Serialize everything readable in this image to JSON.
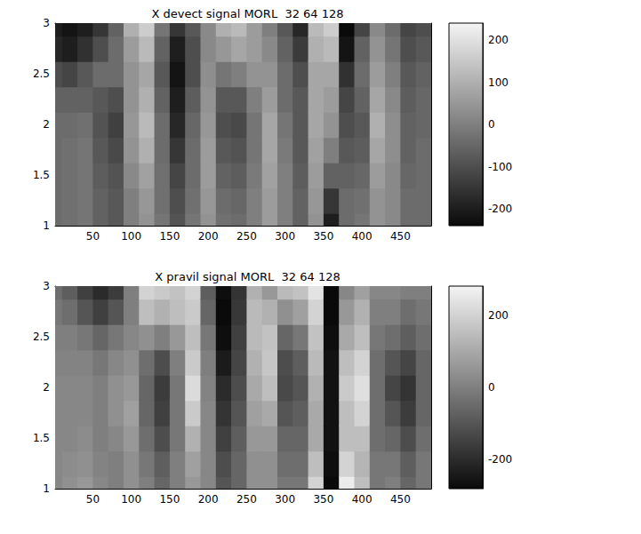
{
  "chart_data": [
    {
      "type": "heatmap",
      "title": "X devect signal MORL  32 64 128",
      "x": [
        0,
        20,
        40,
        60,
        80,
        100,
        120,
        140,
        160,
        180,
        200,
        220,
        240,
        260,
        280,
        300,
        320,
        340,
        360,
        380,
        400,
        420,
        440,
        460,
        480
      ],
      "y": [
        1,
        1.25,
        1.5,
        1.75,
        2,
        2.25,
        2.5,
        2.75,
        3
      ],
      "z": [
        [
          -40,
          -40,
          -40,
          -40,
          -40,
          -60,
          -100,
          -180,
          -200
        ],
        [
          -30,
          -30,
          -30,
          -30,
          -40,
          -60,
          -120,
          -200,
          -220
        ],
        [
          -20,
          -20,
          -20,
          -20,
          -30,
          -60,
          -80,
          -160,
          -200
        ],
        [
          -60,
          -60,
          -70,
          -80,
          -90,
          -80,
          -40,
          -100,
          -150
        ],
        [
          -80,
          -80,
          -90,
          -110,
          -130,
          -100,
          -40,
          -40,
          -60
        ],
        [
          0,
          0,
          20,
          40,
          50,
          40,
          40,
          60,
          100
        ],
        [
          40,
          50,
          70,
          100,
          120,
          100,
          80,
          120,
          160
        ],
        [
          -20,
          -30,
          -30,
          -40,
          -40,
          -60,
          -80,
          -60,
          -20
        ],
        [
          -90,
          -100,
          -120,
          -150,
          -180,
          -200,
          -220,
          -200,
          -150
        ],
        [
          -20,
          -30,
          -40,
          -40,
          -50,
          -70,
          -100,
          -100,
          -80
        ],
        [
          40,
          50,
          60,
          60,
          50,
          40,
          30,
          20,
          20
        ],
        [
          -30,
          -40,
          -60,
          -80,
          -100,
          -80,
          -20,
          50,
          100
        ],
        [
          -40,
          -50,
          -70,
          -90,
          -110,
          -80,
          0,
          80,
          120
        ],
        [
          0,
          0,
          -10,
          -20,
          -20,
          0,
          40,
          60,
          60
        ],
        [
          60,
          60,
          70,
          80,
          80,
          60,
          40,
          20,
          0
        ],
        [
          0,
          0,
          0,
          -10,
          -20,
          -40,
          -40,
          -60,
          -80
        ],
        [
          -60,
          -60,
          -70,
          -80,
          -80,
          -80,
          -100,
          -140,
          -180
        ],
        [
          40,
          50,
          60,
          70,
          80,
          80,
          80,
          100,
          120
        ],
        [
          -200,
          -150,
          -60,
          0,
          40,
          60,
          80,
          120,
          160
        ],
        [
          -40,
          -40,
          -60,
          -80,
          -100,
          -120,
          -160,
          -220,
          -240
        ],
        [
          -20,
          -30,
          -50,
          -70,
          -80,
          -60,
          -40,
          -60,
          -120
        ],
        [
          40,
          40,
          60,
          80,
          100,
          80,
          60,
          40,
          20
        ],
        [
          20,
          20,
          20,
          30,
          30,
          20,
          0,
          -20,
          -40
        ],
        [
          -40,
          -40,
          -50,
          -60,
          -60,
          -70,
          -80,
          -100,
          -120
        ],
        [
          -40,
          -40,
          -40,
          -40,
          -50,
          -50,
          -60,
          -80,
          -100
        ]
      ],
      "xlim": [
        1,
        490
      ],
      "xticks": [
        50,
        100,
        150,
        200,
        250,
        300,
        350,
        400,
        450
      ],
      "ylim": [
        1,
        3
      ],
      "yticks": [
        1,
        1.5,
        2,
        2.5,
        3
      ],
      "colorbar_range": [
        -240,
        240
      ],
      "colorbar_ticks": [
        -200,
        -100,
        0,
        100,
        200
      ],
      "grid": false
    },
    {
      "type": "heatmap",
      "title": "X pravil signal MORL  32 64 128",
      "x": [
        0,
        20,
        40,
        60,
        80,
        100,
        120,
        140,
        160,
        180,
        200,
        220,
        240,
        260,
        280,
        300,
        320,
        340,
        360,
        380,
        400,
        420,
        440,
        460,
        480
      ],
      "y": [
        1,
        1.25,
        1.5,
        1.75,
        2,
        2.25,
        2.5,
        2.75,
        3
      ],
      "z": [
        [
          20,
          20,
          20,
          20,
          20,
          10,
          0,
          -20,
          -40
        ],
        [
          40,
          30,
          20,
          20,
          20,
          10,
          0,
          -40,
          -80
        ],
        [
          60,
          40,
          30,
          20,
          20,
          10,
          -20,
          -100,
          -150
        ],
        [
          20,
          10,
          0,
          0,
          0,
          -20,
          -60,
          -150,
          -200
        ],
        [
          0,
          0,
          20,
          40,
          40,
          20,
          -20,
          -100,
          -160
        ],
        [
          40,
          40,
          60,
          80,
          60,
          40,
          20,
          0,
          0
        ],
        [
          0,
          -20,
          -40,
          -60,
          -60,
          -40,
          40,
          150,
          200
        ],
        [
          -60,
          -80,
          -120,
          -150,
          -160,
          -120,
          0,
          120,
          180
        ],
        [
          0,
          0,
          -20,
          -20,
          -20,
          0,
          60,
          150,
          160
        ],
        [
          60,
          80,
          120,
          180,
          220,
          180,
          150,
          180,
          200
        ],
        [
          20,
          20,
          20,
          20,
          10,
          0,
          -20,
          -60,
          -80
        ],
        [
          -100,
          -120,
          -150,
          -180,
          -200,
          -240,
          -270,
          -280,
          -270
        ],
        [
          -60,
          -60,
          -80,
          -100,
          -120,
          -140,
          -150,
          -170,
          -180
        ],
        [
          40,
          40,
          60,
          80,
          100,
          120,
          140,
          140,
          120
        ],
        [
          40,
          40,
          60,
          100,
          150,
          170,
          160,
          120,
          60
        ],
        [
          -20,
          -40,
          -60,
          -100,
          -130,
          -120,
          -60,
          40,
          140
        ],
        [
          -20,
          -40,
          -60,
          -80,
          -100,
          -80,
          -20,
          80,
          160
        ],
        [
          200,
          150,
          100,
          100,
          120,
          140,
          160,
          200,
          240
        ],
        [
          -280,
          -270,
          -260,
          -260,
          -260,
          -260,
          -270,
          -280,
          -280
        ],
        [
          260,
          200,
          150,
          150,
          180,
          150,
          100,
          60,
          20
        ],
        [
          150,
          130,
          150,
          200,
          230,
          200,
          150,
          120,
          80
        ],
        [
          -20,
          -20,
          -40,
          -40,
          -40,
          -40,
          -20,
          0,
          20
        ],
        [
          0,
          -20,
          -60,
          -100,
          -140,
          -100,
          -40,
          0,
          20
        ],
        [
          -60,
          -80,
          -120,
          -160,
          -180,
          -140,
          -80,
          -40,
          0
        ],
        [
          -20,
          -20,
          -40,
          -60,
          -60,
          -60,
          -40,
          -20,
          0
        ]
      ],
      "xlim": [
        1,
        490
      ],
      "xticks": [
        50,
        100,
        150,
        200,
        250,
        300,
        350,
        400,
        450
      ],
      "ylim": [
        1,
        3
      ],
      "yticks": [
        1,
        1.5,
        2,
        2.5,
        3
      ],
      "colorbar_range": [
        -280,
        280
      ],
      "colorbar_ticks": [
        -200,
        0,
        200
      ],
      "grid": false
    }
  ]
}
